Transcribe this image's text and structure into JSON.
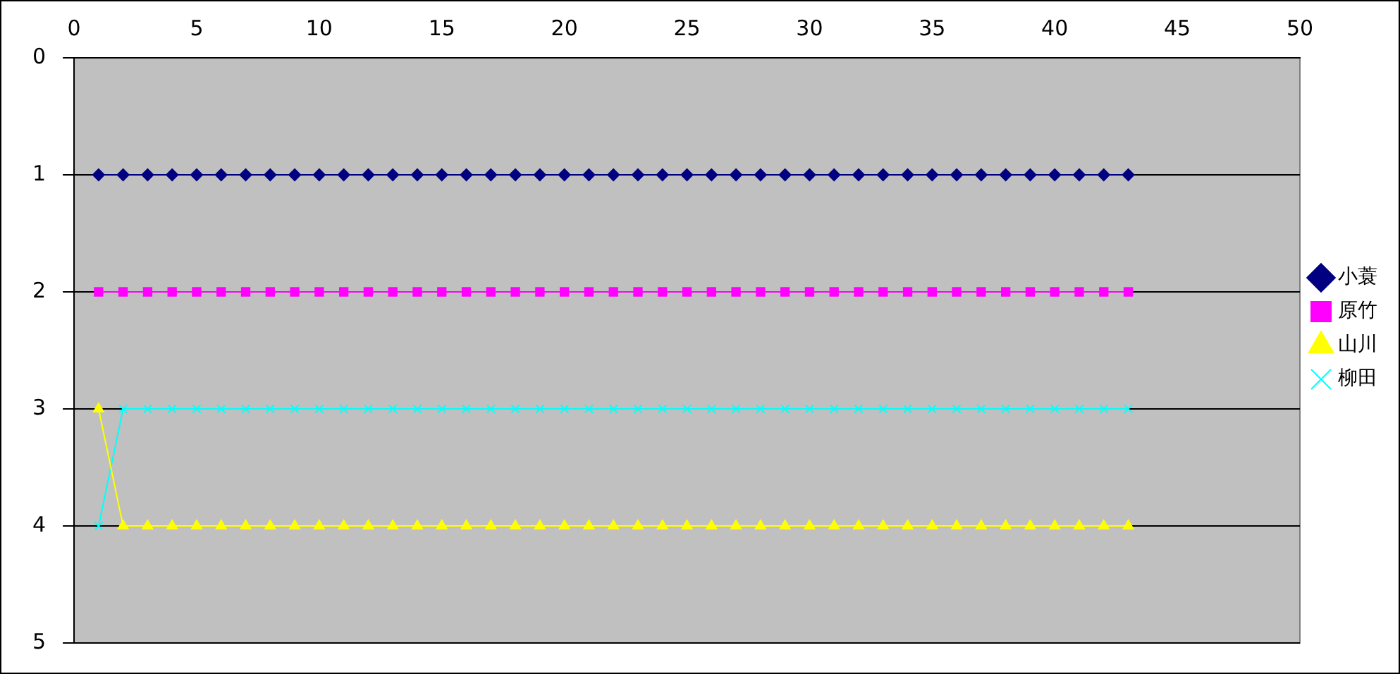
{
  "chart_data": {
    "type": "line",
    "x": [
      1,
      2,
      3,
      4,
      5,
      6,
      7,
      8,
      9,
      10,
      11,
      12,
      13,
      14,
      15,
      16,
      17,
      18,
      19,
      20,
      21,
      22,
      23,
      24,
      25,
      26,
      27,
      28,
      29,
      30,
      31,
      32,
      33,
      34,
      35,
      36,
      37,
      38,
      39,
      40,
      41,
      42,
      43
    ],
    "xlim": [
      0,
      50
    ],
    "xticks": [
      0,
      5,
      10,
      15,
      20,
      25,
      30,
      35,
      40,
      45,
      50
    ],
    "ylim": [
      5,
      0
    ],
    "yticks": [
      0,
      1,
      2,
      3,
      4,
      5
    ],
    "grid": "y",
    "legend": "right",
    "line_style": "solid",
    "series": [
      {
        "name": "小蓑",
        "color": "#000080",
        "marker": "diamond",
        "values": [
          1,
          1,
          1,
          1,
          1,
          1,
          1,
          1,
          1,
          1,
          1,
          1,
          1,
          1,
          1,
          1,
          1,
          1,
          1,
          1,
          1,
          1,
          1,
          1,
          1,
          1,
          1,
          1,
          1,
          1,
          1,
          1,
          1,
          1,
          1,
          1,
          1,
          1,
          1,
          1,
          1,
          1,
          1
        ]
      },
      {
        "name": "原竹",
        "color": "#ff00ff",
        "marker": "square",
        "values": [
          2,
          2,
          2,
          2,
          2,
          2,
          2,
          2,
          2,
          2,
          2,
          2,
          2,
          2,
          2,
          2,
          2,
          2,
          2,
          2,
          2,
          2,
          2,
          2,
          2,
          2,
          2,
          2,
          2,
          2,
          2,
          2,
          2,
          2,
          2,
          2,
          2,
          2,
          2,
          2,
          2,
          2,
          2
        ]
      },
      {
        "name": "山川",
        "color": "#ffff00",
        "marker": "triangle",
        "values": [
          3,
          4,
          4,
          4,
          4,
          4,
          4,
          4,
          4,
          4,
          4,
          4,
          4,
          4,
          4,
          4,
          4,
          4,
          4,
          4,
          4,
          4,
          4,
          4,
          4,
          4,
          4,
          4,
          4,
          4,
          4,
          4,
          4,
          4,
          4,
          4,
          4,
          4,
          4,
          4,
          4,
          4,
          4
        ]
      },
      {
        "name": "柳田",
        "color": "#00ffff",
        "marker": "cross",
        "values": [
          4,
          3,
          3,
          3,
          3,
          3,
          3,
          3,
          3,
          3,
          3,
          3,
          3,
          3,
          3,
          3,
          3,
          3,
          3,
          3,
          3,
          3,
          3,
          3,
          3,
          3,
          3,
          3,
          3,
          3,
          3,
          3,
          3,
          3,
          3,
          3,
          3,
          3,
          3,
          3,
          3,
          3,
          3
        ]
      }
    ]
  }
}
